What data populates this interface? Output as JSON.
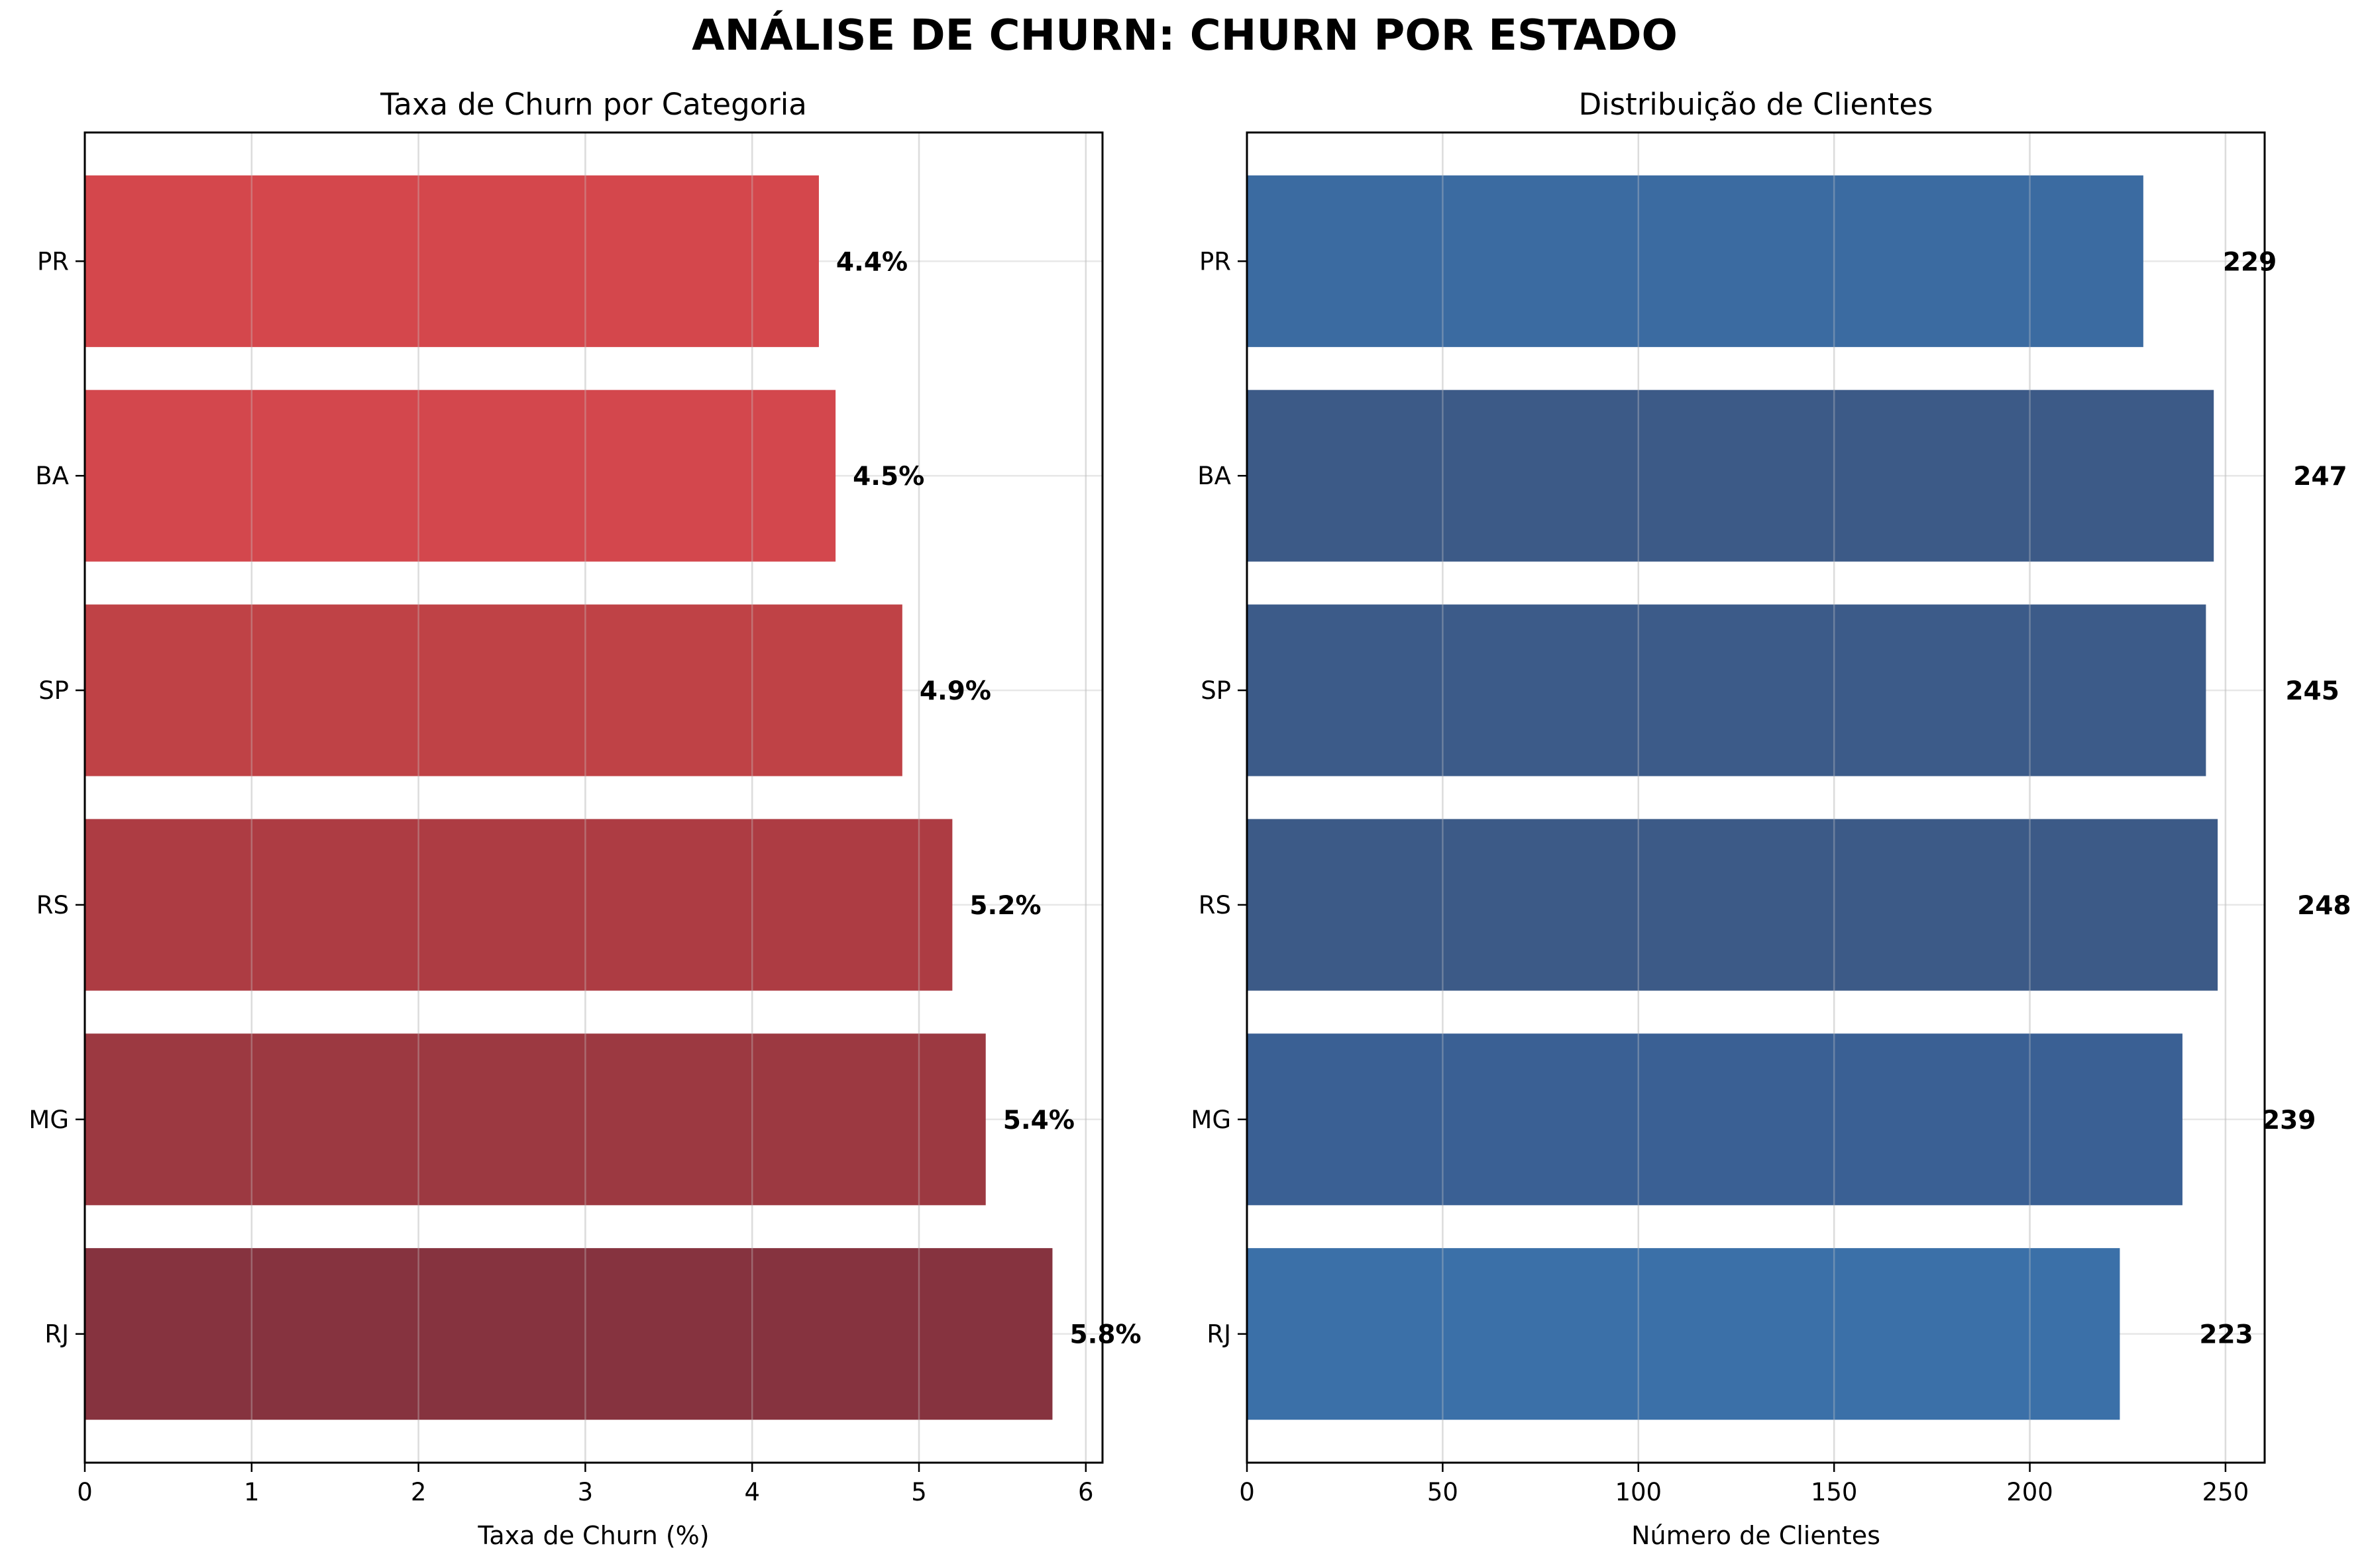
{
  "figure": {
    "title": "ANÁLISE DE CHURN: CHURN POR ESTADO"
  },
  "chart_data": [
    {
      "type": "bar",
      "orientation": "horizontal",
      "title": "Taxa de Churn por Categoria",
      "xlabel": "Taxa de Churn (%)",
      "ylabel": "",
      "categories": [
        "RJ",
        "MG",
        "RS",
        "SP",
        "BA",
        "PR"
      ],
      "values": [
        5.8,
        5.4,
        5.2,
        4.9,
        4.5,
        4.4
      ],
      "value_labels": [
        "5.8%",
        "5.4%",
        "5.2%",
        "4.9%",
        "4.5%",
        "4.4%"
      ],
      "bar_colors": [
        "#86333f",
        "#9c3941",
        "#ad3c43",
        "#bf4246",
        "#d3474d",
        "#d4474c"
      ],
      "xlim": [
        0,
        6.1
      ],
      "xticks": [
        0,
        1,
        2,
        3,
        4,
        5,
        6
      ],
      "grid": true,
      "legend": "none"
    },
    {
      "type": "bar",
      "orientation": "horizontal",
      "title": "Distribuição de Clientes",
      "xlabel": "Número de Clientes",
      "ylabel": "",
      "categories": [
        "RJ",
        "MG",
        "RS",
        "SP",
        "BA",
        "PR"
      ],
      "values": [
        223,
        239,
        248,
        245,
        247,
        229
      ],
      "value_labels": [
        "223",
        "239",
        "248",
        "245",
        "247",
        "229"
      ],
      "bar_colors": [
        "#3b70a8",
        "#3a6094",
        "#3c5a87",
        "#3c5b89",
        "#3c5a87",
        "#3b6ba1"
      ],
      "xlim": [
        0,
        260
      ],
      "xticks": [
        0,
        50,
        100,
        150,
        200,
        250
      ],
      "grid": true,
      "legend": "none"
    }
  ]
}
